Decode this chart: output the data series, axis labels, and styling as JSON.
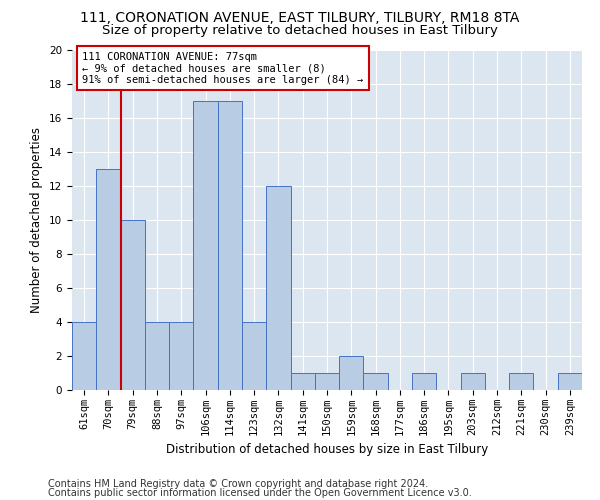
{
  "title1": "111, CORONATION AVENUE, EAST TILBURY, TILBURY, RM18 8TA",
  "title2": "Size of property relative to detached houses in East Tilbury",
  "xlabel": "Distribution of detached houses by size in East Tilbury",
  "ylabel": "Number of detached properties",
  "categories": [
    "61sqm",
    "70sqm",
    "79sqm",
    "88sqm",
    "97sqm",
    "106sqm",
    "114sqm",
    "123sqm",
    "132sqm",
    "141sqm",
    "150sqm",
    "159sqm",
    "168sqm",
    "177sqm",
    "186sqm",
    "195sqm",
    "203sqm",
    "212sqm",
    "221sqm",
    "230sqm",
    "239sqm"
  ],
  "values": [
    4,
    13,
    10,
    4,
    4,
    17,
    17,
    4,
    12,
    1,
    1,
    2,
    1,
    0,
    1,
    0,
    1,
    0,
    1,
    0,
    1
  ],
  "bar_color": "#b8cce4",
  "bar_edge_color": "#4472c4",
  "vline_x": 1.5,
  "annotation_text": "111 CORONATION AVENUE: 77sqm\n← 9% of detached houses are smaller (8)\n91% of semi-detached houses are larger (84) →",
  "annotation_box_color": "#ffffff",
  "annotation_box_edge": "#cc0000",
  "vline_color": "#cc0000",
  "ylim": [
    0,
    20
  ],
  "yticks": [
    0,
    2,
    4,
    6,
    8,
    10,
    12,
    14,
    16,
    18,
    20
  ],
  "footer1": "Contains HM Land Registry data © Crown copyright and database right 2024.",
  "footer2": "Contains public sector information licensed under the Open Government Licence v3.0.",
  "fig_bg_color": "#ffffff",
  "plot_bg_color": "#dce6f1",
  "grid_color": "#ffffff",
  "title1_fontsize": 10,
  "title2_fontsize": 9.5,
  "axis_label_fontsize": 8.5,
  "tick_fontsize": 7.5,
  "annotation_fontsize": 7.5,
  "footer_fontsize": 7
}
